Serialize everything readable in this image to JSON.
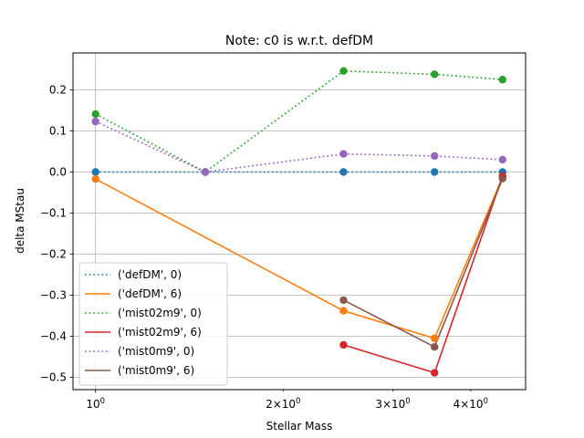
{
  "chart_data": {
    "type": "line",
    "title": "Note: c0 is w.r.t. defDM",
    "xlabel": "Stellar Mass",
    "ylabel": "delta MStau",
    "xscale": "log",
    "xlim": [
      0.92,
      4.9
    ],
    "ylim": [
      -0.53,
      0.29
    ],
    "grid": true,
    "legend_position": "lower-left",
    "x_ticks": [
      {
        "value": 1,
        "base": "10",
        "exp": "0"
      },
      {
        "value": 2,
        "mant": "2×10",
        "exp": "0"
      },
      {
        "value": 3,
        "mant": "3×10",
        "exp": "0"
      },
      {
        "value": 4,
        "mant": "4×10",
        "exp": "0"
      }
    ],
    "y_ticks": [
      {
        "value": 0.2,
        "label": "0.2"
      },
      {
        "value": 0.1,
        "label": "0.1"
      },
      {
        "value": 0.0,
        "label": "0.0"
      },
      {
        "value": -0.1,
        "label": "−0.1"
      },
      {
        "value": -0.2,
        "label": "−0.2"
      },
      {
        "value": -0.3,
        "label": "−0.3"
      },
      {
        "value": -0.4,
        "label": "−0.4"
      },
      {
        "value": -0.5,
        "label": "−0.5"
      }
    ],
    "series": [
      {
        "name": "('defDM', 0)",
        "color": "#1f77b4",
        "style": "dotted",
        "points": [
          [
            1.0,
            0.0
          ],
          [
            1.5,
            0.0
          ],
          [
            2.5,
            0.0
          ],
          [
            3.5,
            0.0
          ],
          [
            4.5,
            0.0
          ]
        ]
      },
      {
        "name": "('defDM', 6)",
        "color": "#ff7f0e",
        "style": "solid",
        "points": [
          [
            1.0,
            -0.017
          ],
          [
            2.5,
            -0.338
          ],
          [
            3.5,
            -0.405
          ],
          [
            4.5,
            -0.012
          ]
        ]
      },
      {
        "name": "('mist02m9', 0)",
        "color": "#2ca02c",
        "style": "dotted",
        "points": [
          [
            1.0,
            0.141
          ],
          [
            1.5,
            0.0
          ],
          [
            2.5,
            0.246
          ],
          [
            3.5,
            0.238
          ],
          [
            4.5,
            0.225
          ]
        ]
      },
      {
        "name": "('mist02m9', 6)",
        "color": "#d62728",
        "style": "solid",
        "points": [
          [
            2.5,
            -0.421
          ],
          [
            3.5,
            -0.489
          ],
          [
            4.5,
            -0.01
          ]
        ]
      },
      {
        "name": "('mist0m9', 0)",
        "color": "#9467bd",
        "style": "dotted",
        "points": [
          [
            1.0,
            0.123
          ],
          [
            1.5,
            0.0
          ],
          [
            2.5,
            0.044
          ],
          [
            3.5,
            0.039
          ],
          [
            4.5,
            0.03
          ]
        ]
      },
      {
        "name": "('mist0m9', 6)",
        "color": "#8c564b",
        "style": "solid",
        "points": [
          [
            2.5,
            -0.312
          ],
          [
            3.5,
            -0.426
          ],
          [
            4.5,
            -0.016
          ]
        ]
      }
    ]
  }
}
